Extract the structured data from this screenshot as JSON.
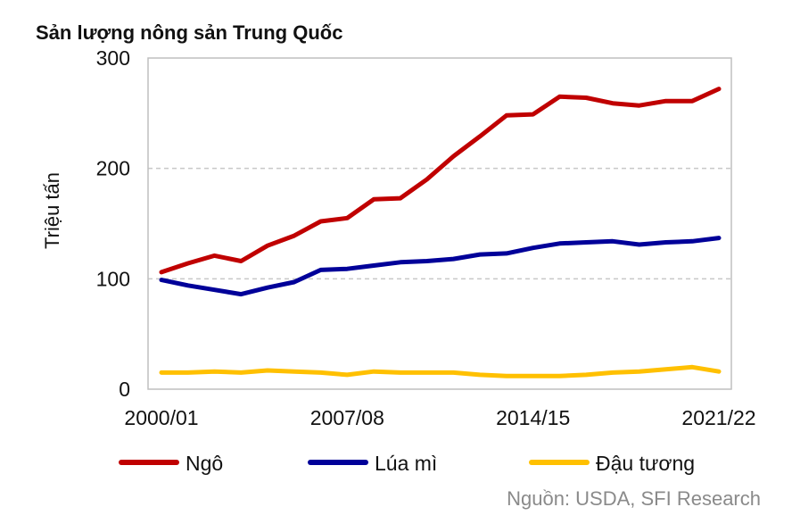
{
  "chart_data": {
    "type": "line",
    "title": "Sản lượng nông sản Trung Quốc",
    "ylabel": "Triệu tấn",
    "xlabel": "",
    "ylim": [
      0,
      300
    ],
    "yticks": [
      0,
      100,
      200,
      300
    ],
    "x_tick_labels": [
      "2000/01",
      "2007/08",
      "2014/15",
      "2021/22"
    ],
    "x_tick_indices": [
      0,
      7,
      14,
      21
    ],
    "grid": "horizontal-dashed",
    "legend_position": "bottom",
    "source": "Nguồn: USDA, SFI Research",
    "series": [
      {
        "name": "Ngô",
        "color": "#c00000",
        "values": [
          106,
          114,
          121,
          116,
          130,
          139,
          152,
          155,
          172,
          173,
          190,
          211,
          229,
          248,
          249,
          265,
          264,
          259,
          257,
          261,
          261,
          272
        ]
      },
      {
        "name": "Lúa mì",
        "color": "#000099",
        "values": [
          99,
          94,
          90,
          86,
          92,
          97,
          108,
          109,
          112,
          115,
          116,
          118,
          122,
          123,
          128,
          132,
          133,
          134,
          131,
          133,
          134,
          137
        ]
      },
      {
        "name": "Đậu tương",
        "color": "#ffc000",
        "values": [
          15,
          15,
          16,
          15,
          17,
          16,
          15,
          13,
          16,
          15,
          15,
          15,
          13,
          12,
          12,
          12,
          13,
          15,
          16,
          18,
          20,
          16
        ]
      }
    ]
  }
}
